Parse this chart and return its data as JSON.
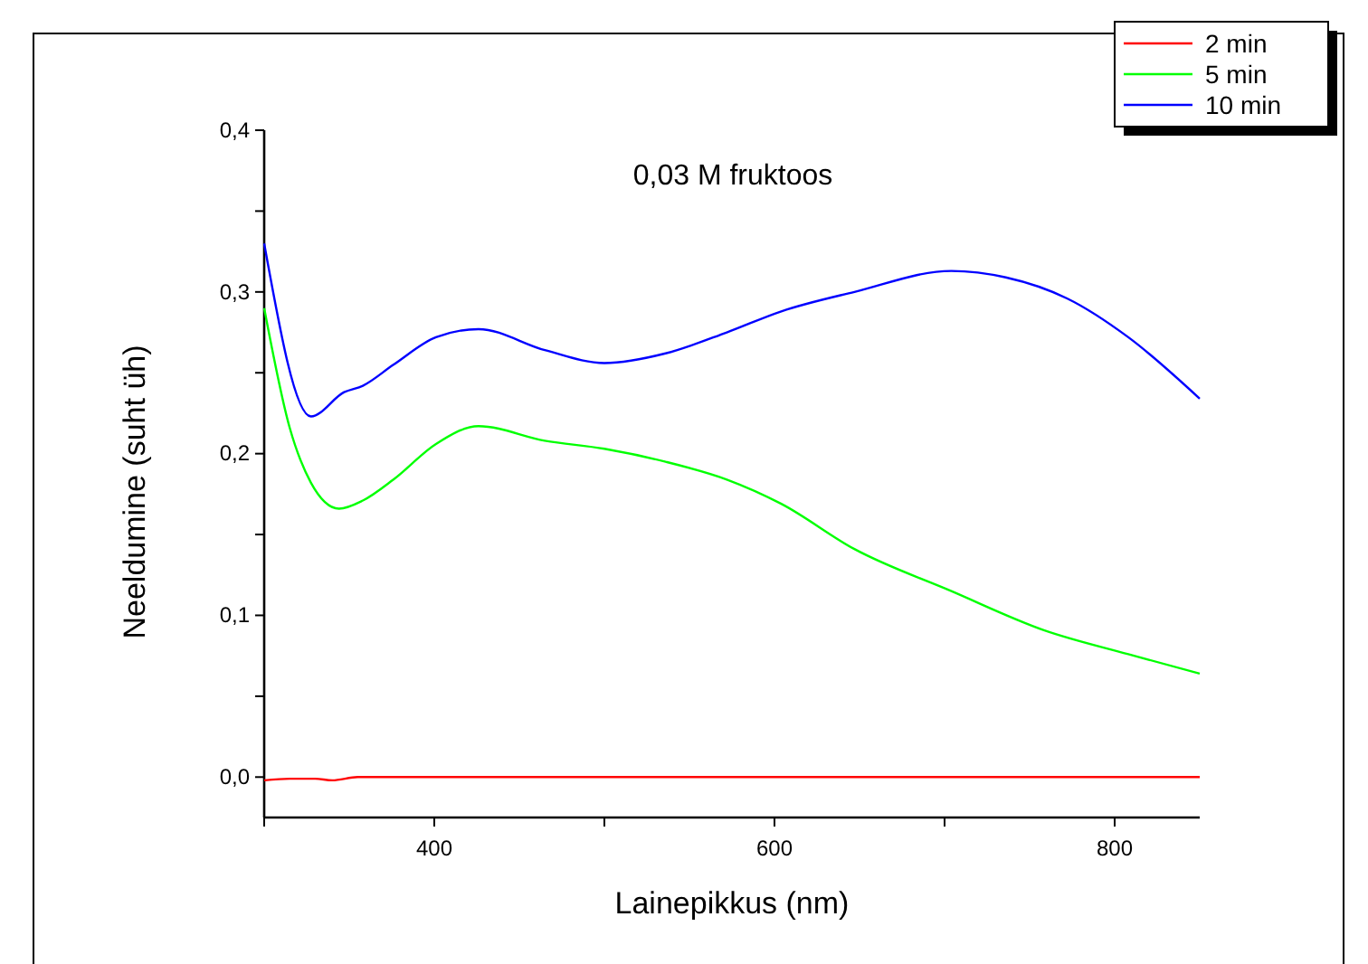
{
  "chart_data": {
    "type": "line",
    "title": "0,03 M fruktoos",
    "xlabel": "Lainepikkus (nm)",
    "ylabel": "Neeldumine (suht üh)",
    "xlim": [
      300,
      850
    ],
    "xticks": [
      {
        "value": 300,
        "label": null
      },
      400,
      {
        "value": 500,
        "label": null
      },
      600,
      {
        "value": 700,
        "label": null
      },
      800
    ],
    "ylim": [
      -0.025,
      0.4
    ],
    "yticks": [
      {
        "value": 0,
        "label": "0,0"
      },
      {
        "value": 0.05,
        "label": null
      },
      {
        "value": 0.1,
        "label": "0,1"
      },
      {
        "value": 0.15,
        "label": null
      },
      {
        "value": 0.2,
        "label": "0,2"
      },
      {
        "value": 0.25,
        "label": null
      },
      {
        "value": 0.3,
        "label": "0,3"
      },
      {
        "value": 0.35,
        "label": null
      },
      {
        "value": 0.4,
        "label": "0,4"
      }
    ],
    "legend": "top right",
    "grid": false,
    "marker": "none",
    "line_style": "solid",
    "series": [
      {
        "name": "2 min",
        "color": "#ff0000",
        "x": [
          300,
          315,
          330,
          340,
          355,
          370,
          450,
          600,
          850
        ],
        "values": [
          -0.002,
          -0.001,
          -0.001,
          -0.002,
          0,
          0,
          0,
          0,
          0
        ]
      },
      {
        "name": "5 min",
        "color": "#00ff00",
        "x": [
          300,
          315,
          327.5,
          344,
          358,
          376,
          401,
          426,
          465,
          500,
          536,
          572,
          604,
          647,
          704,
          758,
          808,
          850
        ],
        "values": [
          0.29,
          0.216,
          0.182,
          0.166,
          0.171,
          0.184,
          0.206,
          0.217,
          0.208,
          0.203,
          0.195,
          0.184,
          0.169,
          0.141,
          0.115,
          0.091,
          0.076,
          0.064
        ]
      },
      {
        "name": "10 min",
        "color": "#0000ff",
        "x": [
          300,
          327.5,
          347,
          358,
          376,
          401,
          426,
          465,
          500,
          536,
          572,
          604,
          647,
          704,
          736,
          772,
          808,
          850
        ],
        "values": [
          0.33,
          0.223,
          0.238,
          0.242,
          0.255,
          0.272,
          0.277,
          0.264,
          0.256,
          0.262,
          0.275,
          0.288,
          0.3,
          0.313,
          0.309,
          0.296,
          0.272,
          0.234
        ]
      }
    ]
  }
}
